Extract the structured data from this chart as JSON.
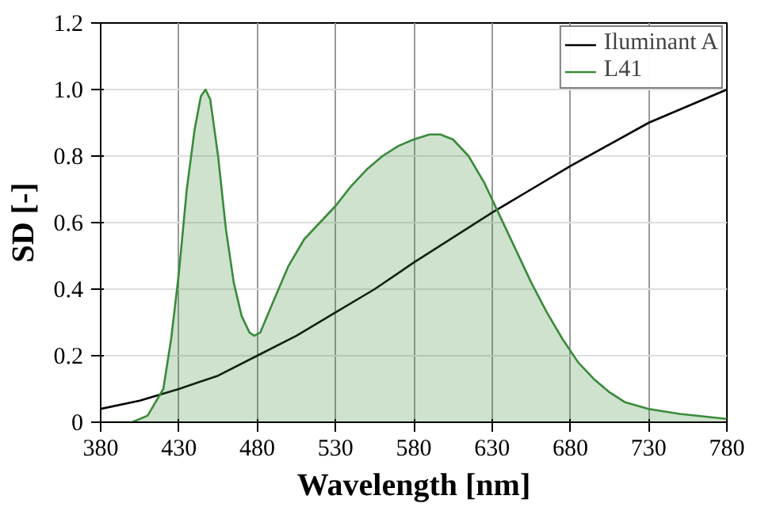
{
  "chart_data": {
    "type": "line",
    "xlabel": "Wavelength [nm]",
    "ylabel": "SD [-]",
    "xlim": [
      380,
      780
    ],
    "xticks": [
      380,
      430,
      480,
      530,
      580,
      630,
      680,
      730,
      780
    ],
    "ylim": [
      0,
      1.2
    ],
    "yticks": [
      0,
      0.2,
      0.4,
      0.6,
      0.8,
      {
        "value": 1,
        "label": "1.0"
      },
      1.2
    ],
    "grid": true,
    "legend": "top right",
    "series": [
      {
        "name": "Iluminant A",
        "color": "#000000",
        "x": [
          380,
          405,
          430,
          455,
          480,
          505,
          530,
          555,
          580,
          605,
          630,
          655,
          680,
          705,
          730,
          755,
          780
        ],
        "values": [
          0.04,
          0.065,
          0.1,
          0.14,
          0.2,
          0.26,
          0.33,
          0.4,
          0.48,
          0.555,
          0.63,
          0.7,
          0.77,
          0.835,
          0.9,
          0.95,
          1.0
        ]
      },
      {
        "name": "L41",
        "type": "area",
        "color": "#3a8a3a",
        "x": [
          380,
          400,
          410,
          420,
          425,
          430,
          435,
          440,
          444,
          447,
          450,
          455,
          460,
          465,
          470,
          475,
          478,
          482,
          490,
          500,
          510,
          520,
          530,
          540,
          550,
          560,
          570,
          580,
          590,
          597,
          605,
          615,
          625,
          635,
          645,
          655,
          665,
          675,
          685,
          695,
          705,
          715,
          730,
          750,
          780
        ],
        "values": [
          0,
          0,
          0.02,
          0.1,
          0.25,
          0.45,
          0.7,
          0.88,
          0.98,
          1.0,
          0.97,
          0.8,
          0.58,
          0.42,
          0.32,
          0.27,
          0.26,
          0.27,
          0.36,
          0.47,
          0.55,
          0.6,
          0.65,
          0.71,
          0.76,
          0.8,
          0.83,
          0.85,
          0.865,
          0.865,
          0.85,
          0.8,
          0.72,
          0.62,
          0.52,
          0.42,
          0.33,
          0.25,
          0.18,
          0.13,
          0.09,
          0.06,
          0.04,
          0.025,
          0.01
        ]
      }
    ]
  }
}
